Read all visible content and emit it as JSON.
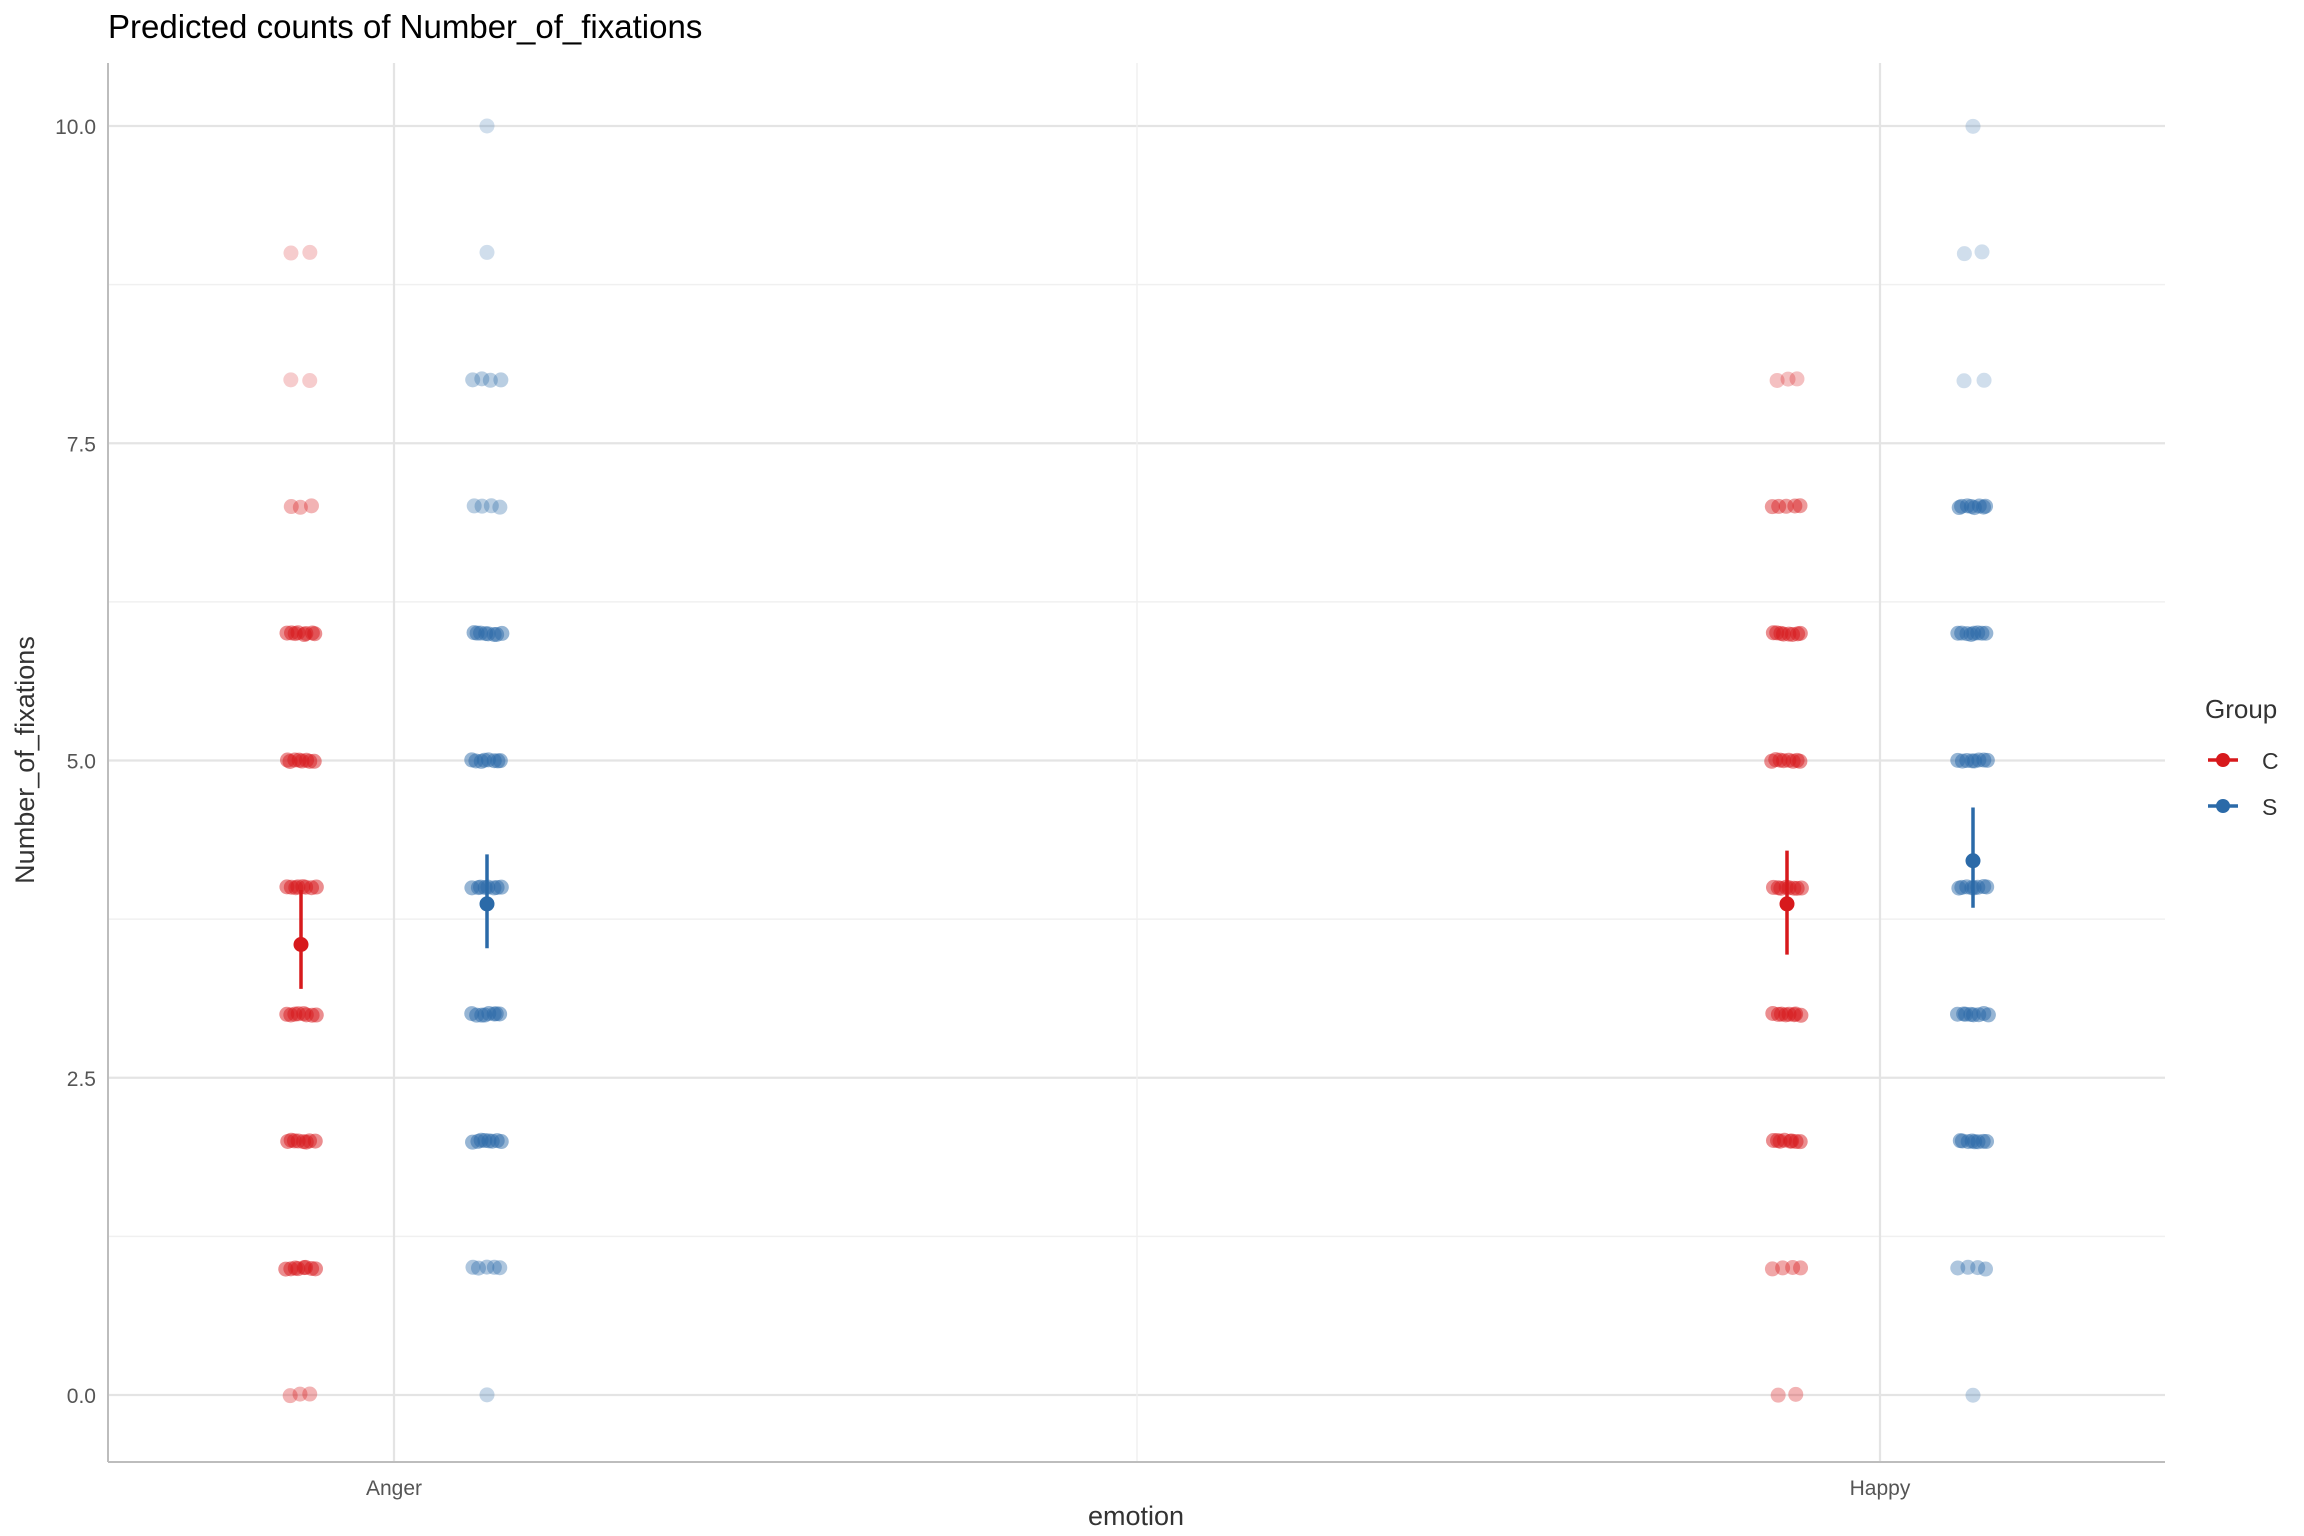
{
  "chart_data": {
    "type": "scatter",
    "title": "Predicted counts of Number_of_fixations",
    "xlabel": "emotion",
    "ylabel": "Number_of_fixations",
    "categories": [
      "Anger",
      "Happy"
    ],
    "ylim": [
      -0.5,
      10.5
    ],
    "yticks": [
      "0.0",
      "2.5",
      "5.0",
      "7.5",
      "10.0"
    ],
    "grid": true,
    "legend": {
      "title": "Group",
      "position": "right",
      "entries": [
        "C",
        "S"
      ]
    },
    "colors": {
      "C": "#d7191c",
      "S": "#2b6aa8",
      "grid": "#e6e6e6",
      "axis": "#bdbdbd"
    },
    "series": [
      {
        "name": "C",
        "predicted": [
          {
            "category": "Anger",
            "value": 3.55,
            "ci_low": 3.2,
            "ci_high": 3.98
          },
          {
            "category": "Happy",
            "value": 3.87,
            "ci_low": 3.47,
            "ci_high": 4.29
          }
        ],
        "raw_points": [
          {
            "category": "Anger",
            "y": 9,
            "n": 2,
            "alpha": 0.4
          },
          {
            "category": "Anger",
            "y": 8,
            "n": 2,
            "alpha": 0.4
          },
          {
            "category": "Anger",
            "y": 7,
            "n": 3,
            "alpha": 0.6
          },
          {
            "category": "Anger",
            "y": 6,
            "n": 8,
            "alpha": 0.9
          },
          {
            "category": "Anger",
            "y": 5,
            "n": 8,
            "alpha": 0.9
          },
          {
            "category": "Anger",
            "y": 4,
            "n": 8,
            "alpha": 0.9
          },
          {
            "category": "Anger",
            "y": 3,
            "n": 8,
            "alpha": 0.9
          },
          {
            "category": "Anger",
            "y": 2,
            "n": 8,
            "alpha": 0.9
          },
          {
            "category": "Anger",
            "y": 1,
            "n": 8,
            "alpha": 0.9
          },
          {
            "category": "Anger",
            "y": 0,
            "n": 3,
            "alpha": 0.6
          },
          {
            "category": "Happy",
            "y": 8,
            "n": 3,
            "alpha": 0.5
          },
          {
            "category": "Happy",
            "y": 7,
            "n": 5,
            "alpha": 0.8
          },
          {
            "category": "Happy",
            "y": 6,
            "n": 8,
            "alpha": 0.9
          },
          {
            "category": "Happy",
            "y": 5,
            "n": 8,
            "alpha": 0.9
          },
          {
            "category": "Happy",
            "y": 4,
            "n": 8,
            "alpha": 0.9
          },
          {
            "category": "Happy",
            "y": 3,
            "n": 8,
            "alpha": 0.9
          },
          {
            "category": "Happy",
            "y": 2,
            "n": 8,
            "alpha": 0.9
          },
          {
            "category": "Happy",
            "y": 1,
            "n": 4,
            "alpha": 0.7
          },
          {
            "category": "Happy",
            "y": 0,
            "n": 2,
            "alpha": 0.6
          }
        ]
      },
      {
        "name": "S",
        "predicted": [
          {
            "category": "Anger",
            "value": 3.87,
            "ci_low": 3.52,
            "ci_high": 4.26
          },
          {
            "category": "Happy",
            "value": 4.21,
            "ci_low": 3.84,
            "ci_high": 4.63
          }
        ],
        "raw_points": [
          {
            "category": "Anger",
            "y": 10,
            "n": 1,
            "alpha": 0.4
          },
          {
            "category": "Anger",
            "y": 9,
            "n": 1,
            "alpha": 0.4
          },
          {
            "category": "Anger",
            "y": 8,
            "n": 4,
            "alpha": 0.6
          },
          {
            "category": "Anger",
            "y": 7,
            "n": 4,
            "alpha": 0.6
          },
          {
            "category": "Anger",
            "y": 6,
            "n": 8,
            "alpha": 0.9
          },
          {
            "category": "Anger",
            "y": 5,
            "n": 8,
            "alpha": 0.9
          },
          {
            "category": "Anger",
            "y": 4,
            "n": 8,
            "alpha": 0.9
          },
          {
            "category": "Anger",
            "y": 3,
            "n": 8,
            "alpha": 0.9
          },
          {
            "category": "Anger",
            "y": 2,
            "n": 8,
            "alpha": 0.9
          },
          {
            "category": "Anger",
            "y": 1,
            "n": 5,
            "alpha": 0.7
          },
          {
            "category": "Anger",
            "y": 0,
            "n": 1,
            "alpha": 0.5
          },
          {
            "category": "Happy",
            "y": 10,
            "n": 1,
            "alpha": 0.4
          },
          {
            "category": "Happy",
            "y": 9,
            "n": 2,
            "alpha": 0.4
          },
          {
            "category": "Happy",
            "y": 8,
            "n": 2,
            "alpha": 0.4
          },
          {
            "category": "Happy",
            "y": 7,
            "n": 8,
            "alpha": 0.9
          },
          {
            "category": "Happy",
            "y": 6,
            "n": 8,
            "alpha": 0.9
          },
          {
            "category": "Happy",
            "y": 5,
            "n": 8,
            "alpha": 0.9
          },
          {
            "category": "Happy",
            "y": 4,
            "n": 8,
            "alpha": 0.9
          },
          {
            "category": "Happy",
            "y": 3,
            "n": 8,
            "alpha": 0.9
          },
          {
            "category": "Happy",
            "y": 2,
            "n": 8,
            "alpha": 0.9
          },
          {
            "category": "Happy",
            "y": 1,
            "n": 4,
            "alpha": 0.7
          },
          {
            "category": "Happy",
            "y": 0,
            "n": 1,
            "alpha": 0.5
          }
        ]
      }
    ]
  }
}
